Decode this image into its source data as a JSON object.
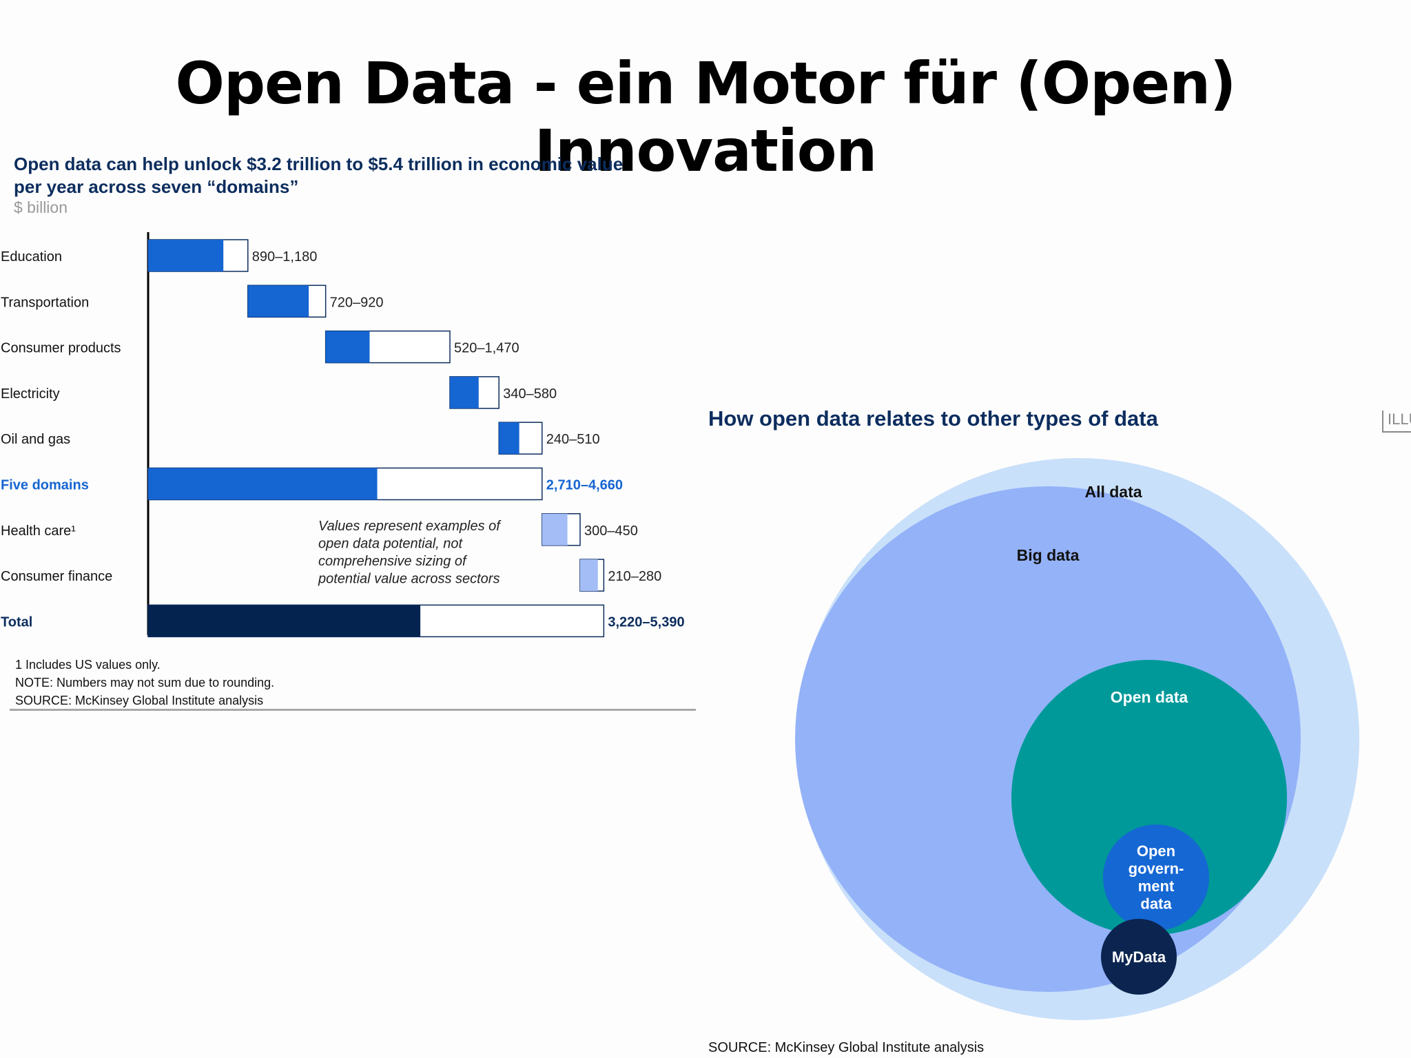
{
  "slide": {
    "title": "Open Data - ein Motor für (Open) Innovation"
  },
  "waterfall": {
    "title_line1": "Open data can help unlock $3.2 trillion to $5.4 trillion in economic value",
    "title_line2": "per year across seven “domains”",
    "unit": "$ billion",
    "annotation": [
      "Values represent examples of",
      "open data potential, not",
      "comprehensive sizing of",
      "potential value across sectors"
    ],
    "notes": [
      "1  Includes US values only.",
      "NOTE: Numbers may not sum due to rounding.",
      "SOURCE: McKinsey Global Institute analysis"
    ]
  },
  "venn": {
    "title": "How open data relates to other types of data",
    "tag": "ILLU",
    "source": "SOURCE: McKinsey Global Institute analysis",
    "labels": {
      "all": "All data",
      "big": "Big data",
      "open": "Open data",
      "gov": [
        "Open",
        "govern-",
        "ment",
        "data"
      ],
      "my": "MyData"
    },
    "colors": {
      "all": "#c9e0fa",
      "big": "#94b2f8",
      "open": "#00999a",
      "gov": "#1567d3",
      "my": "#0b2550"
    }
  },
  "chart_data": {
    "type": "bar",
    "subtype": "waterfall-range",
    "title": "Open data can help unlock $3.2 trillion to $5.4 trillion in economic value per year across seven “domains”",
    "unit": "$ billion",
    "categories": [
      "Education",
      "Transportation",
      "Consumer products",
      "Electricity",
      "Oil and gas",
      "Five domains",
      "Health care¹",
      "Consumer finance",
      "Total"
    ],
    "kinds": [
      "step",
      "step",
      "step",
      "step",
      "step",
      "subtotal",
      "step",
      "step",
      "total"
    ],
    "low": [
      890,
      720,
      520,
      340,
      240,
      2710,
      300,
      210,
      3220
    ],
    "high": [
      1180,
      920,
      1470,
      580,
      510,
      4660,
      450,
      280,
      5390
    ],
    "value_labels": [
      "890–1,180",
      "720–920",
      "520–1,470",
      "340–580",
      "240–510",
      "2,710–4,660",
      "300–450",
      "210–280",
      "3,220–5,390"
    ],
    "colors": {
      "step": "#1565d2",
      "subtotal": "#1565d2",
      "secondary": "#a4bdf7",
      "total": "#04244f",
      "range": "#ffffff",
      "highlight_text": "#1565d2"
    }
  }
}
